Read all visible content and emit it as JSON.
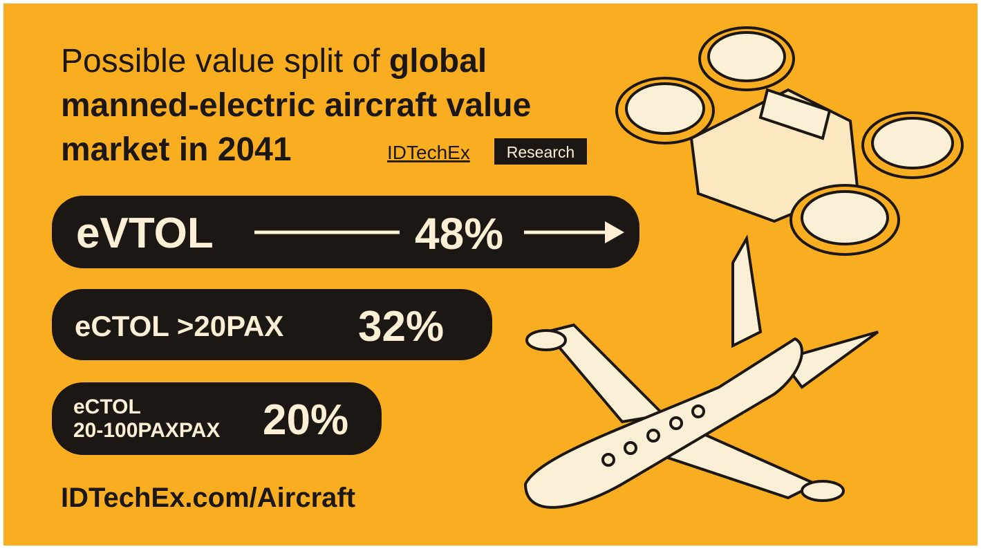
{
  "header": {
    "title_regular": "Possible value split of",
    "title_bold_line1": "global",
    "title_bold_line2": "manned-electric aircraft value",
    "title_bold_line3": "market in 2041",
    "brand": "IDTechEx",
    "brand_tag": "Research"
  },
  "segments": [
    {
      "label": "eVTOL",
      "share": "48%"
    },
    {
      "label": "eCTOL >20PAX",
      "share": "32%"
    },
    {
      "label_line1": "eCTOL",
      "label_line2": "20-100PAXPAX",
      "share": "20%"
    }
  ],
  "footer": {
    "url": "IDTechEx.com/Aircraft"
  }
}
